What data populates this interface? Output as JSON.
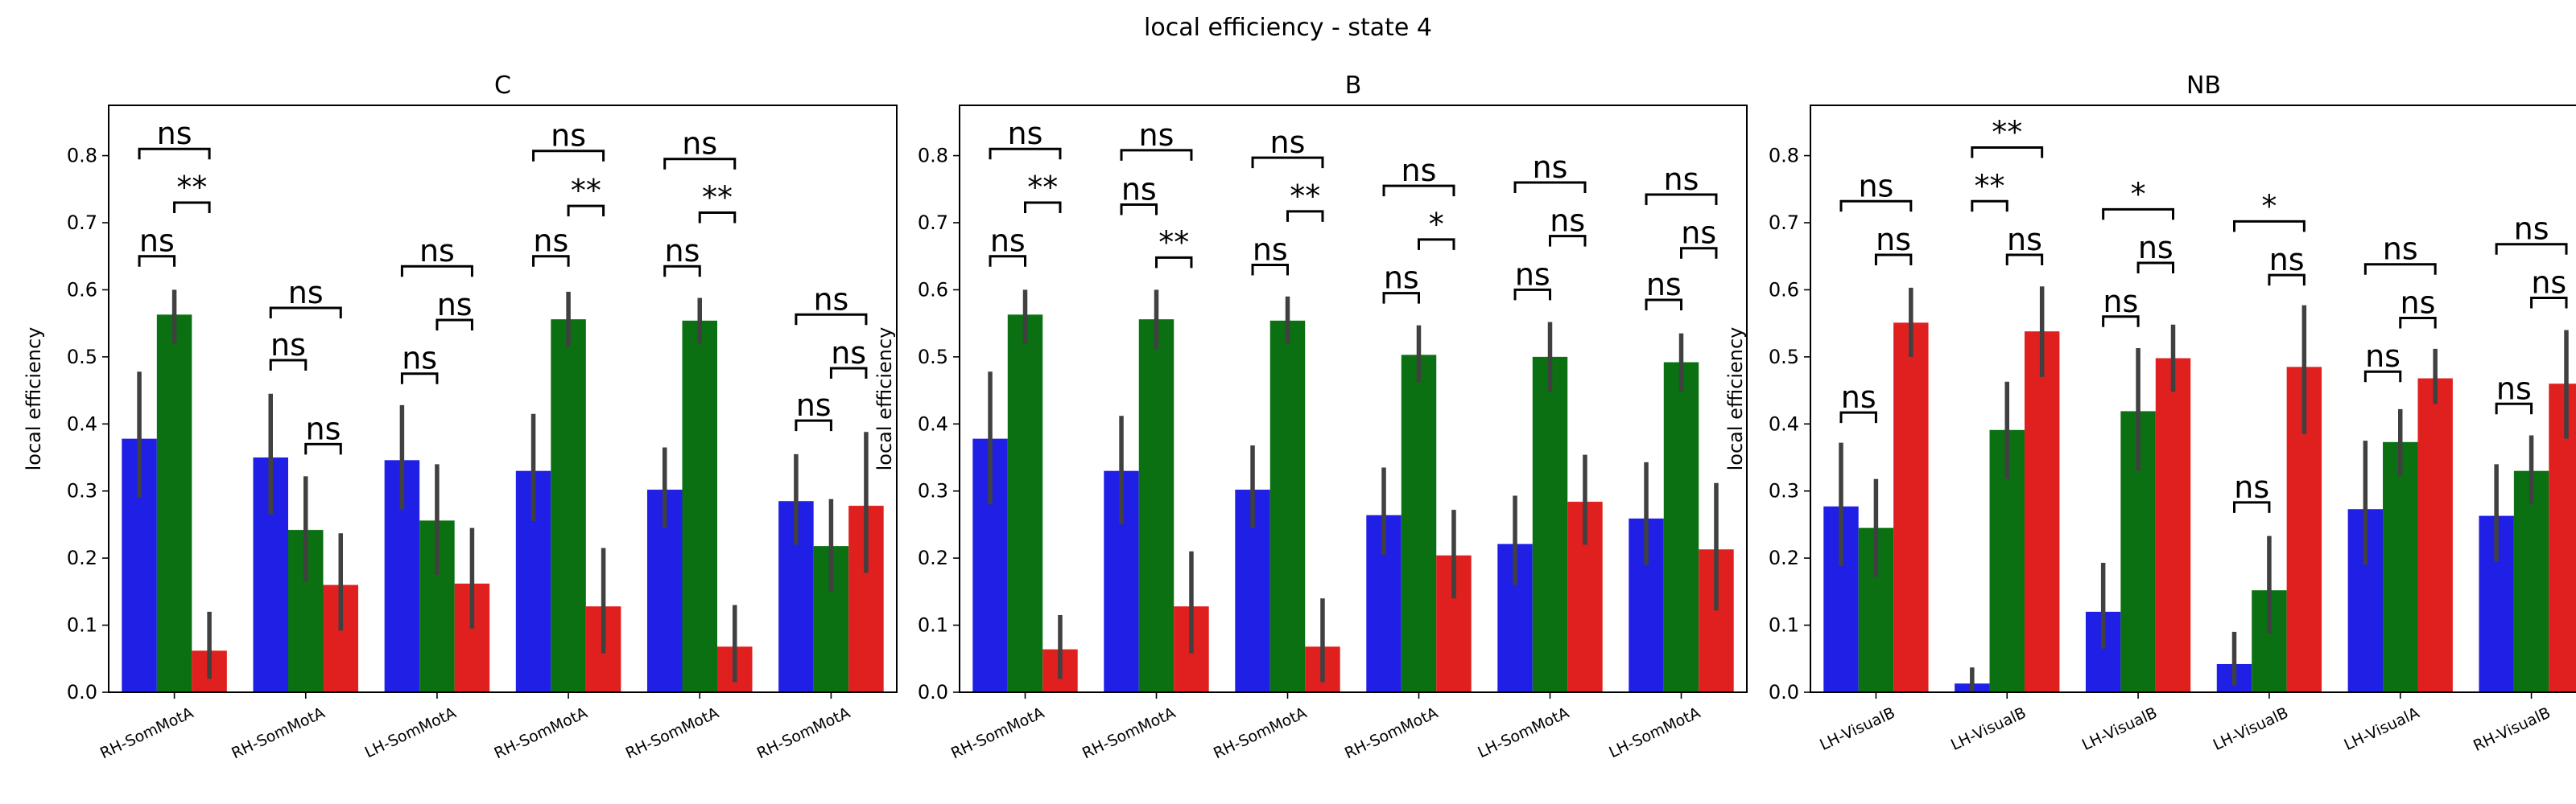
{
  "figure": {
    "title": "local efficiency - state 4"
  },
  "colors": {
    "blue": "#1f1fe6",
    "green": "#0a7012",
    "red": "#e01f1f",
    "errorbar": "#404040"
  },
  "chart_data": [
    {
      "type": "bar",
      "title": "C",
      "ylabel": "local efficiency",
      "xlabel": "",
      "ylim": [
        0,
        0.875
      ],
      "yticks": [
        "0.0",
        "0.1",
        "0.2",
        "0.3",
        "0.4",
        "0.5",
        "0.6",
        "0.7",
        "0.8"
      ],
      "categories": [
        "RH-SomMotA",
        "RH-SomMotA",
        "LH-SomMotA",
        "RH-SomMotA",
        "RH-SomMotA",
        "RH-SomMotA"
      ],
      "series": [
        {
          "color": "blue",
          "values": [
            0.378,
            0.35,
            0.346,
            0.33,
            0.302,
            0.285
          ],
          "ci_low": [
            0.29,
            0.265,
            0.272,
            0.255,
            0.245,
            0.22
          ],
          "ci_high": [
            0.478,
            0.445,
            0.428,
            0.415,
            0.365,
            0.355
          ]
        },
        {
          "color": "green",
          "values": [
            0.563,
            0.242,
            0.256,
            0.556,
            0.554,
            0.218
          ],
          "ci_low": [
            0.52,
            0.165,
            0.175,
            0.515,
            0.52,
            0.15
          ],
          "ci_high": [
            0.6,
            0.322,
            0.34,
            0.597,
            0.588,
            0.288
          ]
        },
        {
          "color": "red",
          "values": [
            0.062,
            0.16,
            0.162,
            0.128,
            0.068,
            0.278
          ],
          "ci_low": [
            0.02,
            0.092,
            0.095,
            0.058,
            0.015,
            0.178
          ],
          "ci_high": [
            0.12,
            0.237,
            0.245,
            0.215,
            0.13,
            0.388
          ]
        }
      ],
      "annotations": [
        {
          "category": 0,
          "pairs": [
            {
              "from": 0,
              "to": 1,
              "label": "ns",
              "y": 0.65
            },
            {
              "from": 1,
              "to": 2,
              "label": "**",
              "y": 0.73
            },
            {
              "from": 0,
              "to": 2,
              "label": "ns",
              "y": 0.81
            }
          ]
        },
        {
          "category": 1,
          "pairs": [
            {
              "from": 0,
              "to": 1,
              "label": "ns",
              "y": 0.495
            },
            {
              "from": 1,
              "to": 2,
              "label": "ns",
              "y": 0.37
            },
            {
              "from": 0,
              "to": 2,
              "label": "ns",
              "y": 0.573
            }
          ]
        },
        {
          "category": 2,
          "pairs": [
            {
              "from": 0,
              "to": 1,
              "label": "ns",
              "y": 0.475
            },
            {
              "from": 1,
              "to": 2,
              "label": "ns",
              "y": 0.555
            },
            {
              "from": 0,
              "to": 2,
              "label": "ns",
              "y": 0.635
            }
          ]
        },
        {
          "category": 3,
          "pairs": [
            {
              "from": 0,
              "to": 1,
              "label": "ns",
              "y": 0.65
            },
            {
              "from": 1,
              "to": 2,
              "label": "**",
              "y": 0.725
            },
            {
              "from": 0,
              "to": 2,
              "label": "ns",
              "y": 0.807
            }
          ]
        },
        {
          "category": 4,
          "pairs": [
            {
              "from": 0,
              "to": 1,
              "label": "ns",
              "y": 0.635
            },
            {
              "from": 1,
              "to": 2,
              "label": "**",
              "y": 0.715
            },
            {
              "from": 0,
              "to": 2,
              "label": "ns",
              "y": 0.795
            }
          ]
        },
        {
          "category": 5,
          "pairs": [
            {
              "from": 0,
              "to": 1,
              "label": "ns",
              "y": 0.405
            },
            {
              "from": 1,
              "to": 2,
              "label": "ns",
              "y": 0.483
            },
            {
              "from": 0,
              "to": 2,
              "label": "ns",
              "y": 0.563
            }
          ]
        }
      ]
    },
    {
      "type": "bar",
      "title": "B",
      "ylabel": "local efficiency",
      "xlabel": "",
      "ylim": [
        0,
        0.875
      ],
      "yticks": [
        "0.0",
        "0.1",
        "0.2",
        "0.3",
        "0.4",
        "0.5",
        "0.6",
        "0.7",
        "0.8"
      ],
      "categories": [
        "RH-SomMotA",
        "RH-SomMotA",
        "RH-SomMotA",
        "RH-SomMotA",
        "LH-SomMotA",
        "LH-SomMotA"
      ],
      "series": [
        {
          "color": "blue",
          "values": [
            0.378,
            0.33,
            0.302,
            0.264,
            0.221,
            0.259
          ],
          "ci_low": [
            0.28,
            0.25,
            0.245,
            0.205,
            0.16,
            0.19
          ],
          "ci_high": [
            0.478,
            0.412,
            0.368,
            0.335,
            0.293,
            0.343
          ]
        },
        {
          "color": "green",
          "values": [
            0.563,
            0.556,
            0.554,
            0.503,
            0.5,
            0.492
          ],
          "ci_low": [
            0.52,
            0.512,
            0.52,
            0.462,
            0.448,
            0.448
          ],
          "ci_high": [
            0.6,
            0.6,
            0.59,
            0.547,
            0.552,
            0.535
          ]
        },
        {
          "color": "red",
          "values": [
            0.064,
            0.128,
            0.068,
            0.204,
            0.284,
            0.213
          ],
          "ci_low": [
            0.02,
            0.058,
            0.015,
            0.14,
            0.22,
            0.122
          ],
          "ci_high": [
            0.115,
            0.21,
            0.14,
            0.272,
            0.354,
            0.312
          ]
        }
      ],
      "annotations": [
        {
          "category": 0,
          "pairs": [
            {
              "from": 0,
              "to": 1,
              "label": "ns",
              "y": 0.65
            },
            {
              "from": 1,
              "to": 2,
              "label": "**",
              "y": 0.73
            },
            {
              "from": 0,
              "to": 2,
              "label": "ns",
              "y": 0.81
            }
          ]
        },
        {
          "category": 1,
          "pairs": [
            {
              "from": 0,
              "to": 1,
              "label": "ns",
              "y": 0.727
            },
            {
              "from": 1,
              "to": 2,
              "label": "**",
              "y": 0.648
            },
            {
              "from": 0,
              "to": 2,
              "label": "ns",
              "y": 0.808
            }
          ]
        },
        {
          "category": 2,
          "pairs": [
            {
              "from": 0,
              "to": 1,
              "label": "ns",
              "y": 0.637
            },
            {
              "from": 1,
              "to": 2,
              "label": "**",
              "y": 0.717
            },
            {
              "from": 0,
              "to": 2,
              "label": "ns",
              "y": 0.797
            }
          ]
        },
        {
          "category": 3,
          "pairs": [
            {
              "from": 0,
              "to": 1,
              "label": "ns",
              "y": 0.595
            },
            {
              "from": 1,
              "to": 2,
              "label": "*",
              "y": 0.675
            },
            {
              "from": 0,
              "to": 2,
              "label": "ns",
              "y": 0.755
            }
          ]
        },
        {
          "category": 4,
          "pairs": [
            {
              "from": 0,
              "to": 1,
              "label": "ns",
              "y": 0.6
            },
            {
              "from": 1,
              "to": 2,
              "label": "ns",
              "y": 0.68
            },
            {
              "from": 0,
              "to": 2,
              "label": "ns",
              "y": 0.76
            }
          ]
        },
        {
          "category": 5,
          "pairs": [
            {
              "from": 0,
              "to": 1,
              "label": "ns",
              "y": 0.585
            },
            {
              "from": 1,
              "to": 2,
              "label": "ns",
              "y": 0.662
            },
            {
              "from": 0,
              "to": 2,
              "label": "ns",
              "y": 0.742
            }
          ]
        }
      ]
    },
    {
      "type": "bar",
      "title": "NB",
      "ylabel": "local efficiency",
      "xlabel": "",
      "ylim": [
        0,
        0.875
      ],
      "yticks": [
        "0.0",
        "0.1",
        "0.2",
        "0.3",
        "0.4",
        "0.5",
        "0.6",
        "0.7",
        "0.8"
      ],
      "categories": [
        "LH-VisualB",
        "LH-VisualB",
        "LH-VisualB",
        "LH-VisualB",
        "LH-VisualA",
        "RH-VisualB"
      ],
      "series": [
        {
          "color": "blue",
          "values": [
            0.277,
            0.013,
            0.12,
            0.042,
            0.273,
            0.263
          ],
          "ci_low": [
            0.188,
            0.0,
            0.065,
            0.01,
            0.19,
            0.195
          ],
          "ci_high": [
            0.372,
            0.037,
            0.193,
            0.09,
            0.375,
            0.34
          ]
        },
        {
          "color": "green",
          "values": [
            0.245,
            0.391,
            0.419,
            0.152,
            0.373,
            0.33
          ],
          "ci_low": [
            0.172,
            0.318,
            0.33,
            0.088,
            0.322,
            0.28
          ],
          "ci_high": [
            0.318,
            0.463,
            0.513,
            0.233,
            0.422,
            0.383
          ]
        },
        {
          "color": "red",
          "values": [
            0.551,
            0.538,
            0.498,
            0.485,
            0.468,
            0.46
          ],
          "ci_low": [
            0.5,
            0.47,
            0.448,
            0.385,
            0.43,
            0.378
          ],
          "ci_high": [
            0.603,
            0.605,
            0.548,
            0.577,
            0.512,
            0.54
          ]
        }
      ],
      "annotations": [
        {
          "category": 0,
          "pairs": [
            {
              "from": 0,
              "to": 1,
              "label": "ns",
              "y": 0.417
            },
            {
              "from": 1,
              "to": 2,
              "label": "ns",
              "y": 0.652
            },
            {
              "from": 0,
              "to": 2,
              "label": "ns",
              "y": 0.732
            }
          ]
        },
        {
          "category": 1,
          "pairs": [
            {
              "from": 0,
              "to": 1,
              "label": "**",
              "y": 0.732
            },
            {
              "from": 1,
              "to": 2,
              "label": "ns",
              "y": 0.652
            },
            {
              "from": 0,
              "to": 2,
              "label": "**",
              "y": 0.812
            }
          ]
        },
        {
          "category": 2,
          "pairs": [
            {
              "from": 0,
              "to": 1,
              "label": "ns",
              "y": 0.56
            },
            {
              "from": 1,
              "to": 2,
              "label": "ns",
              "y": 0.64
            },
            {
              "from": 0,
              "to": 2,
              "label": "*",
              "y": 0.72
            }
          ]
        },
        {
          "category": 3,
          "pairs": [
            {
              "from": 0,
              "to": 1,
              "label": "ns",
              "y": 0.283
            },
            {
              "from": 1,
              "to": 2,
              "label": "ns",
              "y": 0.622
            },
            {
              "from": 0,
              "to": 2,
              "label": "*",
              "y": 0.702
            }
          ]
        },
        {
          "category": 4,
          "pairs": [
            {
              "from": 0,
              "to": 1,
              "label": "ns",
              "y": 0.478
            },
            {
              "from": 1,
              "to": 2,
              "label": "ns",
              "y": 0.558
            },
            {
              "from": 0,
              "to": 2,
              "label": "ns",
              "y": 0.638
            }
          ]
        },
        {
          "category": 5,
          "pairs": [
            {
              "from": 0,
              "to": 1,
              "label": "ns",
              "y": 0.43
            },
            {
              "from": 1,
              "to": 2,
              "label": "ns",
              "y": 0.588
            },
            {
              "from": 0,
              "to": 2,
              "label": "ns",
              "y": 0.668
            }
          ]
        }
      ]
    }
  ]
}
